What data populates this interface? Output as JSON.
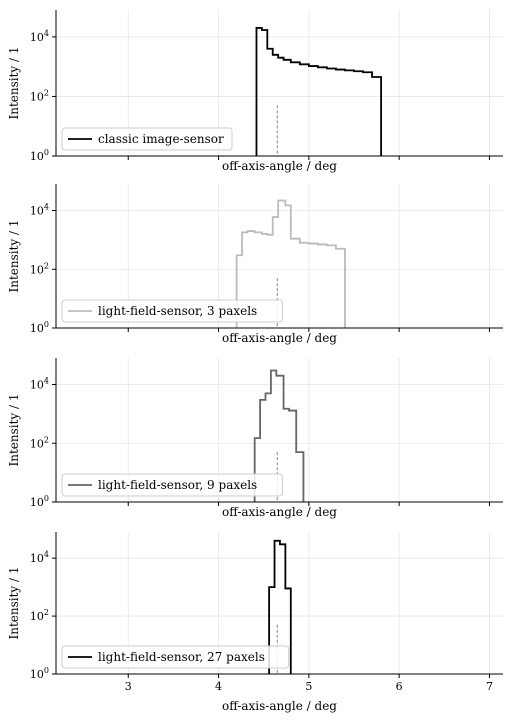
{
  "chart_data": {
    "type": "step-histogram",
    "layout": "4 vertically stacked panels sharing the x axis",
    "xlabel": "off-axis-angle / deg",
    "ylabel": "Intensity / 1",
    "xlim": [
      2.2,
      7.15
    ],
    "ylim": [
      1,
      80000
    ],
    "yscale": "log",
    "x_ticks": [
      3,
      4,
      5,
      6,
      7
    ],
    "x_tick_labels": [
      "3",
      "4",
      "5",
      "6",
      "7"
    ],
    "y_ticks": [
      1,
      100,
      10000
    ],
    "y_tick_labels": [
      "10^0",
      "10^2",
      "10^4"
    ],
    "grid": true,
    "legend_placement": "lower-left",
    "reference_line": {
      "x": 4.65,
      "y_max": 50,
      "style": "dashed"
    },
    "panels": [
      {
        "legend": "classic image-sensor",
        "color": "#000000",
        "edges": [
          4.42,
          4.48,
          4.54,
          4.6,
          4.66,
          4.72,
          4.8,
          4.9,
          5.0,
          5.1,
          5.2,
          5.3,
          5.4,
          5.5,
          5.6,
          5.7,
          5.8
        ],
        "values": [
          20000,
          17000,
          4000,
          2500,
          2000,
          1700,
          1400,
          1200,
          1050,
          950,
          870,
          800,
          750,
          700,
          650,
          450
        ]
      },
      {
        "legend": "light-field-sensor, 3 paxels",
        "color": "#bbbbbb",
        "edges": [
          4.2,
          4.26,
          4.32,
          4.4,
          4.48,
          4.54,
          4.6,
          4.66,
          4.74,
          4.8,
          4.9,
          5.0,
          5.1,
          5.2,
          5.3,
          5.4
        ],
        "values": [
          300,
          1800,
          2000,
          1800,
          1600,
          1500,
          6000,
          22000,
          15000,
          1100,
          800,
          750,
          700,
          650,
          500
        ]
      },
      {
        "legend": "light-field-sensor, 9 paxels",
        "color": "#666666",
        "edges": [
          4.4,
          4.46,
          4.52,
          4.58,
          4.64,
          4.72,
          4.78,
          4.86,
          4.94
        ],
        "values": [
          150,
          3000,
          5000,
          30000,
          20000,
          1500,
          1300,
          50
        ]
      },
      {
        "legend": "light-field-sensor, 27 paxels",
        "color": "#000000",
        "edges": [
          4.56,
          4.62,
          4.68,
          4.74,
          4.8
        ],
        "values": [
          1000,
          40000,
          30000,
          900
        ]
      }
    ]
  }
}
